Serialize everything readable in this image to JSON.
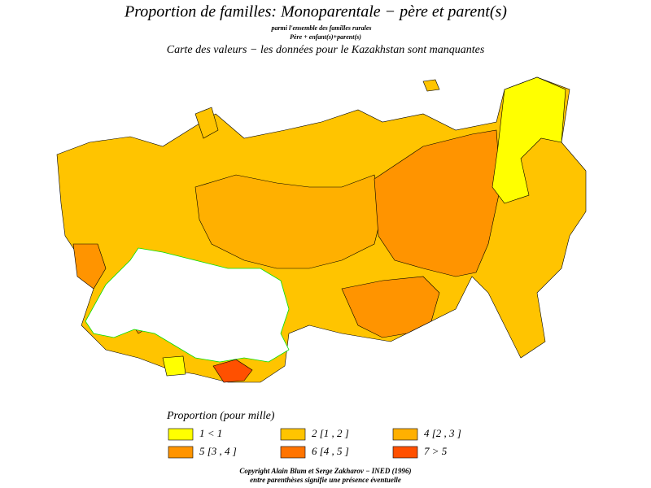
{
  "header": {
    "title": "Proportion de familles: Monoparentale − père et parent(s)",
    "subtitle": "parmi l'ensemble des familles rurales",
    "formula": "Père + enfant(s)+parent(s)",
    "note": "Carte des valeurs − les données pour le Kazakhstan sont manquantes"
  },
  "legend": {
    "title": "Proportion (pour mille)",
    "items": [
      {
        "label": "1 < 1",
        "color": "#ffff00"
      },
      {
        "label": "2 [1 , 2 ]",
        "color": "#ffc400"
      },
      {
        "label": "4 [2 , 3 ]",
        "color": "#ffb000"
      },
      {
        "label": "5 [3 , 4 ]",
        "color": "#ff9400"
      },
      {
        "label": "6 [4 , 5 ]",
        "color": "#ff7400"
      },
      {
        "label": "7 > 5",
        "color": "#ff5000"
      }
    ]
  },
  "footer": {
    "copyright": "Copyright Alain Blum et Serge Zakharov − INED (1996)",
    "remark": "entre parenthèses signifie une présence éventuelle"
  }
}
